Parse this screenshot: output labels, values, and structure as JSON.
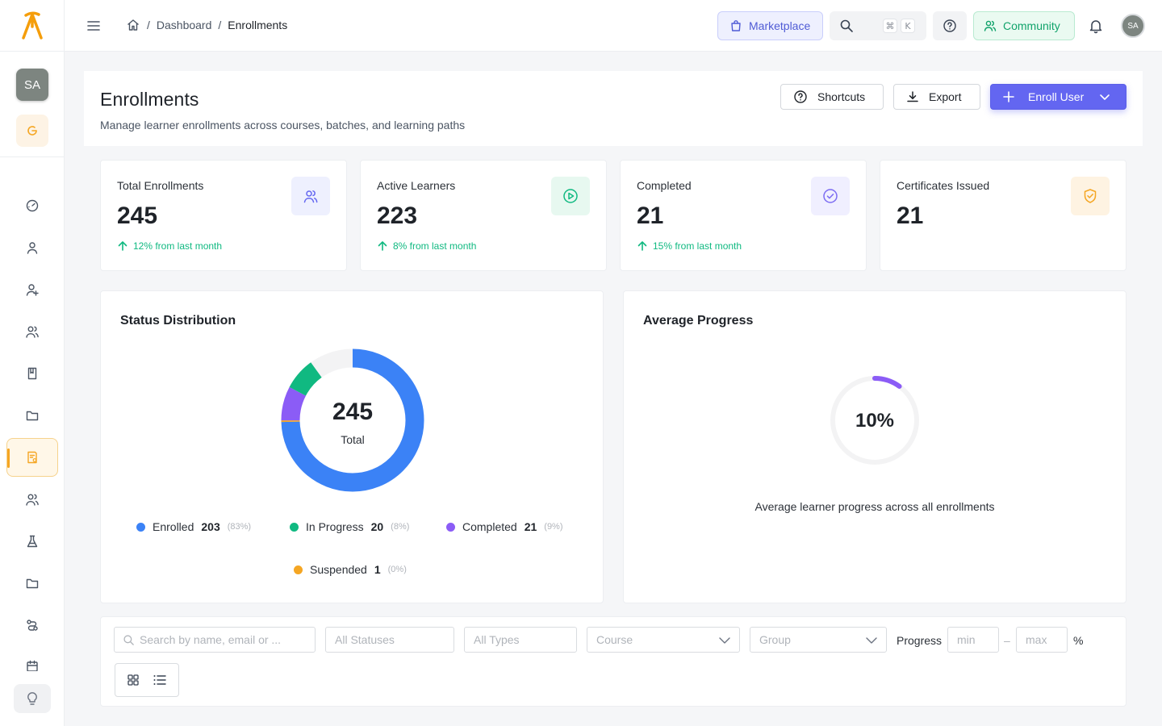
{
  "sidebar": {
    "avatar_initials": "SA",
    "icons": [
      "dashboard-icon",
      "user-icon",
      "user-plus-icon",
      "users-icon",
      "book-icon",
      "folder-icon",
      "enrollments-icon",
      "team-icon",
      "flask-icon",
      "folder-icon",
      "route-icon",
      "calendar-icon"
    ],
    "active_index": 6
  },
  "topbar": {
    "breadcrumb": {
      "home": "home-icon",
      "items": [
        "Dashboard",
        "Enrollments"
      ],
      "separator": "/"
    },
    "marketplace_label": "Marketplace",
    "search_shortcut": [
      "⌘",
      "K"
    ],
    "community_label": "Community",
    "user_initials": "SA"
  },
  "page": {
    "title": "Enrollments",
    "subtitle": "Manage learner enrollments across courses, batches, and learning paths",
    "shortcuts_label": "Shortcuts",
    "export_label": "Export",
    "enroll_label": "Enroll User"
  },
  "stats": [
    {
      "title": "Total Enrollments",
      "value": "245",
      "delta": "12% from last month",
      "icon": "users-icon",
      "icon_bg": "#eef0fe",
      "icon_color": "#6366f1"
    },
    {
      "title": "Active Learners",
      "value": "223",
      "delta": "8% from last month",
      "icon": "play-circle-icon",
      "icon_bg": "#e7f8f0",
      "icon_color": "#10b981"
    },
    {
      "title": "Completed",
      "value": "21",
      "delta": "15% from last month",
      "icon": "check-circle-icon",
      "icon_bg": "#f0efff",
      "icon_color": "#7c6cf2"
    },
    {
      "title": "Certificates Issued",
      "value": "21",
      "delta": "",
      "icon": "shield-check-icon",
      "icon_bg": "#fef3e2",
      "icon_color": "#f5a623"
    }
  ],
  "status_distribution": {
    "title": "Status Distribution",
    "total_value": "245",
    "total_label": "Total",
    "legend": [
      {
        "label": "Enrolled",
        "count": "203",
        "pct": "(83%)",
        "color": "#3b82f6"
      },
      {
        "label": "In Progress",
        "count": "20",
        "pct": "(8%)",
        "color": "#10b981"
      },
      {
        "label": "Completed",
        "count": "21",
        "pct": "(9%)",
        "color": "#8b5cf6"
      },
      {
        "label": "Suspended",
        "count": "1",
        "pct": "(0%)",
        "color": "#f5a623"
      }
    ]
  },
  "average_progress": {
    "title": "Average Progress",
    "value_label": "10%",
    "value": 10,
    "caption": "Average learner progress across all enrollments",
    "color": "#8b5cf6"
  },
  "filters": {
    "search_placeholder": "Search by name, email or ...",
    "status_placeholder": "All Statuses",
    "type_placeholder": "All Types",
    "course_placeholder": "Course",
    "group_placeholder": "Group",
    "progress_label": "Progress",
    "min_placeholder": "min",
    "max_placeholder": "max",
    "range_separator": "–",
    "percent_unit": "%"
  },
  "chart_data": {
    "type": "pie",
    "categories": [
      "Enrolled",
      "Suspended",
      "Completed",
      "In Progress"
    ],
    "values": [
      203,
      1,
      21,
      20
    ],
    "colors": [
      "#3b82f6",
      "#f5a623",
      "#8b5cf6",
      "#10b981"
    ],
    "title": "Status Distribution",
    "center_label": "245 Total"
  }
}
